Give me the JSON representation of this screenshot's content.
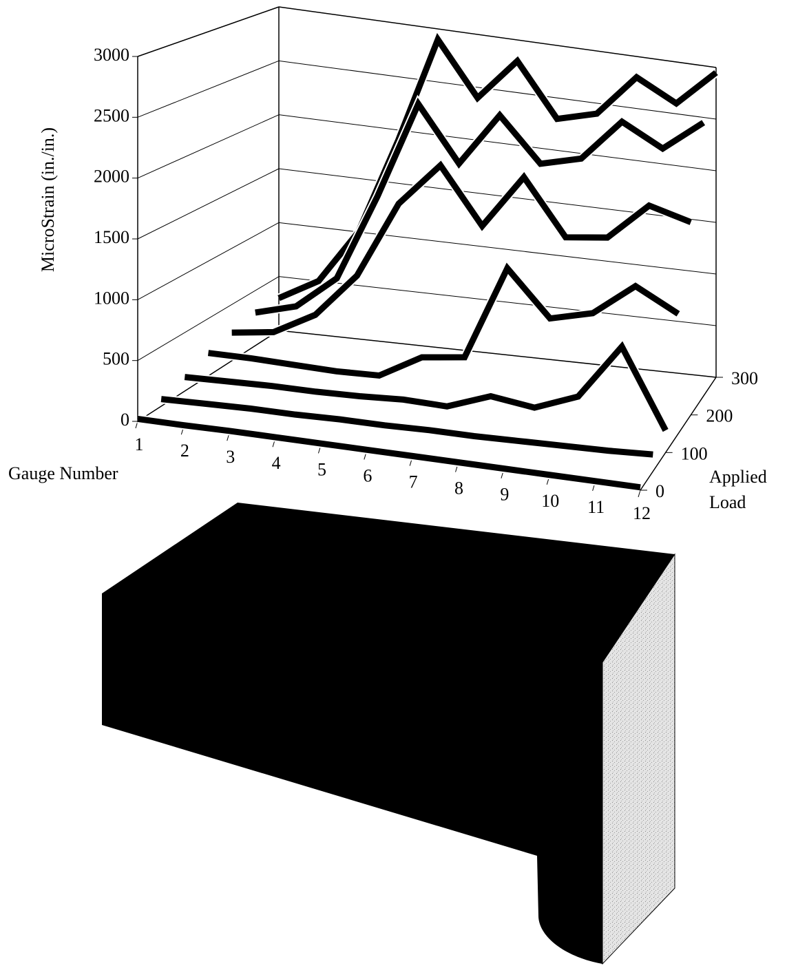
{
  "chart_data": {
    "type": "line3d",
    "ylabel": "MicroStrain (in./in.)",
    "xlabel": "Gauge Number",
    "zlabel": [
      "Applied",
      "Load"
    ],
    "categories": [
      "1",
      "2",
      "3",
      "4",
      "5",
      "6",
      "7",
      "8",
      "9",
      "10",
      "11",
      "12"
    ],
    "ylim": [
      0,
      3000
    ],
    "yticks": [
      0,
      500,
      1000,
      1500,
      2000,
      2500,
      3000
    ],
    "zlim": [
      0,
      300
    ],
    "zticks": [
      0,
      100,
      200,
      300
    ],
    "grid": true,
    "color": "#000000",
    "series": [
      {
        "z": 0,
        "values": [
          20,
          20,
          25,
          25,
          25,
          25,
          25,
          25,
          25,
          25,
          25,
          25
        ]
      },
      {
        "z": 50,
        "values": [
          60,
          70,
          80,
          80,
          90,
          90,
          100,
          100,
          110,
          120,
          130,
          150
        ]
      },
      {
        "z": 100,
        "values": [
          120,
          130,
          140,
          140,
          150,
          170,
          160,
          300,
          250,
          400,
          900,
          200
        ]
      },
      {
        "z": 150,
        "values": [
          200,
          200,
          190,
          180,
          190,
          400,
          450,
          1300,
          900,
          1000,
          1300,
          1100
        ]
      },
      {
        "z": 200,
        "values": [
          250,
          300,
          500,
          900,
          1600,
          2000,
          1500,
          2000,
          1500,
          1550,
          1900,
          1800
        ]
      },
      {
        "z": 250,
        "values": [
          300,
          400,
          700,
          1500,
          2400,
          1900,
          2400,
          2000,
          2100,
          2500,
          2300,
          2600
        ]
      },
      {
        "z": 300,
        "values": [
          300,
          500,
          1000,
          1900,
          2900,
          2400,
          2800,
          2300,
          2400,
          2800,
          2600,
          2950
        ]
      }
    ]
  }
}
